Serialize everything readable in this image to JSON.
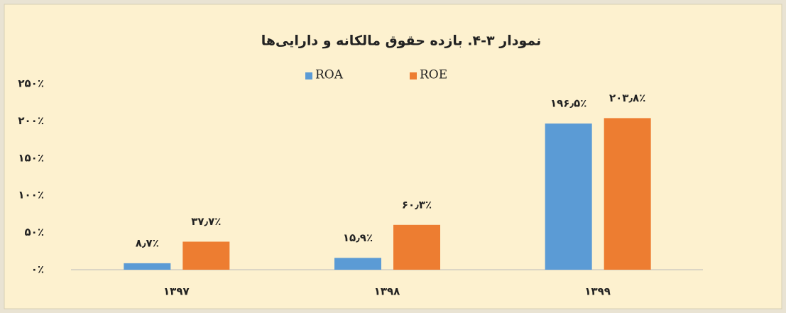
{
  "chart_data": {
    "type": "bar",
    "title": "نمودار ۳-۴. بازده حقوق مالکانه و دارایی‌ها",
    "categories": [
      "۱۳۹۷",
      "۱۳۹۸",
      "۱۳۹۹"
    ],
    "series": [
      {
        "name": "ROA",
        "color": "#5b9bd5",
        "values": [
          8.7,
          15.9,
          196.5
        ],
        "value_labels": [
          "۸٫۷٪",
          "۱۵٫۹٪",
          "۱۹۶٫۵٪"
        ]
      },
      {
        "name": "ROE",
        "color": "#ed7d31",
        "values": [
          37.7,
          60.3,
          203.8
        ],
        "value_labels": [
          "۳۷٫۷٪",
          "۶۰٫۳٪",
          "۲۰۳٫۸٪"
        ]
      }
    ],
    "ylim": [
      0,
      250
    ],
    "yticks": [
      {
        "value": 0,
        "label": "۰٪"
      },
      {
        "value": 50,
        "label": "۵۰٪"
      },
      {
        "value": 100,
        "label": "۱۰۰٪"
      },
      {
        "value": 150,
        "label": "۱۵۰٪"
      },
      {
        "value": 200,
        "label": "۲۰۰٪"
      },
      {
        "value": 250,
        "label": "۲۵۰٪"
      }
    ],
    "legend": "top"
  }
}
